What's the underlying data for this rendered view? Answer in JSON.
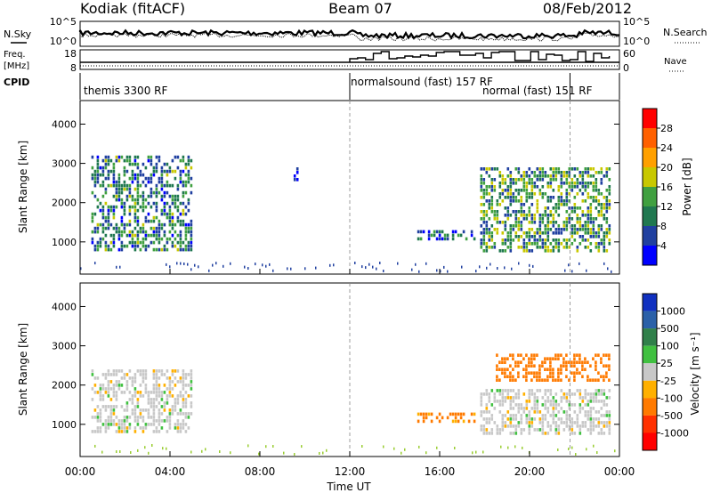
{
  "header": {
    "station": "Kodiak (fitACF)",
    "beam": "Beam 07",
    "date": "08/Feb/2012"
  },
  "top_panels": {
    "nsky_label": "N.Sky",
    "nsearch_label": "N.Search",
    "noise_ticks": [
      "10^5",
      "10^0"
    ],
    "freq_label": "Freq.",
    "freq_unit": "[MHz]",
    "freq_ticks": [
      "18",
      "8"
    ],
    "nave_label": "Nave",
    "nave_ticks": [
      "60",
      "0"
    ],
    "cpid_label": "CPID",
    "cpid_segments": [
      {
        "label": "themis 3300 RF"
      },
      {
        "label": "normalsound (fast) 157 RF"
      },
      {
        "label": "normal (fast) 151 RF"
      }
    ]
  },
  "power_colorbar": {
    "label": "Power [dB]",
    "ticks": [
      "28",
      "24",
      "20",
      "16",
      "12",
      "8",
      "4"
    ],
    "colors": [
      "#ff0000",
      "#ff6000",
      "#ffa000",
      "#c8c800",
      "#40a040",
      "#207850",
      "#2040a0",
      "#0000ff"
    ]
  },
  "velocity_colorbar": {
    "label": "Velocity [m s⁻¹]",
    "ticks": [
      "1000",
      "500",
      "100",
      "25",
      "-25",
      "-100",
      "-500",
      "-1000"
    ],
    "colors": [
      "#1030c0",
      "#2a60a8",
      "#30804a",
      "#40c040",
      "#c8c8c8",
      "#ffb000",
      "#ff7a00",
      "#ff3000",
      "#ff0000"
    ]
  },
  "axes": {
    "ylabel": "Slant Range [km]",
    "xlabel": "Time UT",
    "yticks": [
      "4000",
      "3000",
      "2000",
      "1000"
    ],
    "xticks": [
      "00:00",
      "04:00",
      "08:00",
      "12:00",
      "16:00",
      "20:00",
      "00:00"
    ]
  },
  "chart_data": {
    "type": "heatmap",
    "title": "Kodiak (fitACF)",
    "subtitle": "Beam 07 08/Feb/2012",
    "xlabel": "Time UT",
    "ylabel": "Slant Range [km]",
    "xlim_hours": [
      0,
      24
    ],
    "ylim_km": [
      180,
      4600
    ],
    "panels": [
      {
        "name": "Power",
        "unit": "dB",
        "colorbar_range": [
          0,
          30
        ],
        "regions": [
          {
            "t": [
              0.5,
              5.0
            ],
            "range_km": [
              800,
              3200
            ],
            "value": 10
          },
          {
            "t": [
              9.5,
              9.7
            ],
            "range_km": [
              2600,
              2900
            ],
            "value": 6
          },
          {
            "t": [
              15.0,
              17.5
            ],
            "range_km": [
              1100,
              1300
            ],
            "value": 8
          },
          {
            "t": [
              17.8,
              23.6
            ],
            "range_km": [
              800,
              2900
            ],
            "value": 12
          }
        ]
      },
      {
        "name": "Velocity",
        "unit": "m s^-1",
        "colorbar_range": [
          -1000,
          1000
        ],
        "regions": [
          {
            "t": [
              0.5,
              5.0
            ],
            "range_km": [
              800,
              2400
            ],
            "value": 0
          },
          {
            "t": [
              15.0,
              17.5
            ],
            "range_km": [
              1100,
              1300
            ],
            "value": -120
          },
          {
            "t": [
              18.5,
              23.6
            ],
            "range_km": [
              2100,
              2800
            ],
            "value": -300
          },
          {
            "t": [
              17.8,
              23.6
            ],
            "range_km": [
              800,
              1900
            ],
            "value": 0
          }
        ]
      }
    ],
    "cpid_change_hours": [
      12.0,
      21.8
    ]
  }
}
